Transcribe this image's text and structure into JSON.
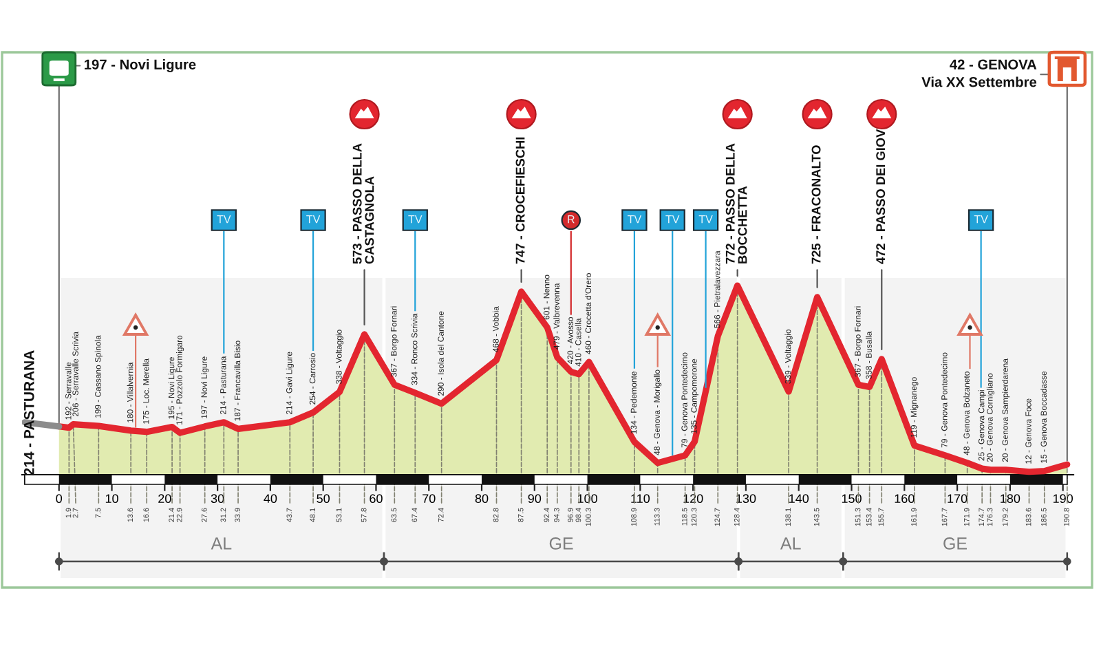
{
  "chart_data": {
    "type": "area",
    "x": [
      0,
      1.9,
      2.7,
      7.5,
      13.6,
      16.6,
      21.4,
      22.9,
      27.6,
      31.2,
      33.9,
      43.7,
      48.1,
      53.1,
      57.8,
      63.5,
      67.4,
      72.4,
      82.8,
      87.5,
      92.4,
      94.3,
      96.9,
      98.4,
      100.3,
      108.9,
      113.3,
      118.5,
      120.3,
      124.7,
      128.4,
      138.1,
      143.5,
      151.3,
      153.4,
      155.7,
      161.9,
      167.7,
      171.9,
      174.7,
      176.3,
      179.2,
      183.6,
      186.5,
      190.8
    ],
    "series": [
      {
        "color": "#e1ebb0",
        "values": [
          197,
          192,
          206,
          199,
          180,
          175,
          195,
          171,
          197,
          214,
          187,
          214,
          254,
          338,
          573,
          367,
          334,
          290,
          468,
          747,
          601,
          479,
          420,
          410,
          460,
          134,
          48,
          79,
          135,
          566,
          772,
          339,
          725,
          367,
          358,
          472,
          119,
          79,
          48,
          25,
          20,
          20,
          12,
          15,
          42
        ],
        "value_labels": [
          null,
          "192 - Serravalle",
          "206 - Serravalle Scrivia",
          "199 - Cassano Spinola",
          "180 - Villalvernia",
          "175 - Loc. Merella",
          "195 - Novi Ligure",
          "171 - Pozzolo Formigaro",
          "197 - Novi Ligure",
          "214 - Pasturana",
          "187 - Francavilla Bisio",
          "214 - Gavi Ligure",
          "254 - Carrosio",
          "338 - Voltaggio",
          null,
          "367 - Borgo Fornari",
          "334 - Ronco Scrivia",
          "290 - Isola del Cantone",
          "468 - Vobbia",
          null,
          "601 - Nenno",
          "479 - Valbrevenna",
          "420 - Avosso",
          "410 - Casella",
          "460 - Crocetta d'Orero",
          "134 - Pedemonte",
          "48 - Genova - Morigallo",
          "79 - Genova Pontedecimo",
          "135 - Campomorone",
          "566 - Pietralavezzara",
          null,
          "339 - Voltaggio",
          null,
          "367 - Borgo Fornari",
          "358 - Busalla",
          null,
          "119 - Mignanego",
          "79 - Genova Pontedecimo",
          "48 - Genova Bolzaneto",
          "25 - Genova Campi",
          "20 - Genova Cornigliano",
          "20 - Genova Sampierdarena",
          "12 - Genova Foce",
          "15 - Genova Boccadasse",
          null
        ]
      },
      {
        "type": "line",
        "color": "#e3262f",
        "values": [
          197,
          192,
          206,
          199,
          180,
          175,
          195,
          171,
          197,
          214,
          187,
          214,
          254,
          338,
          573,
          367,
          334,
          290,
          468,
          747,
          601,
          479,
          420,
          410,
          460,
          134,
          48,
          79,
          135,
          566,
          772,
          339,
          725,
          367,
          358,
          472,
          119,
          79,
          48,
          25,
          20,
          20,
          12,
          15,
          42
        ]
      },
      {
        "type": "line",
        "color": "#8c8c8c",
        "x": [
          -6.5,
          0
        ],
        "values": [
          214,
          197
        ]
      }
    ],
    "xlim": [
      -7,
      192
    ],
    "xticks": [
      0,
      10,
      20,
      30,
      40,
      50,
      60,
      70,
      80,
      90,
      100,
      110,
      120,
      130,
      140,
      150,
      160,
      170,
      180,
      190
    ],
    "tick_labels": "x",
    "annotations": [
      {
        "text": "197 - Novi Ligure",
        "x": 0,
        "y": 197
      },
      {
        "text": "42 - GENOVA\nVia XX Settembre",
        "x": 190.8,
        "y": 42
      },
      "214 - PASTURANA",
      {
        "text": "573 - PASSO DELLA\nCASTAGNOLA",
        "x": 57.8,
        "y": 573
      },
      {
        "text": "747 - CROCEFIESCHI",
        "x": 87.5,
        "y": 747
      },
      {
        "text": "772 - PASSO DELLA\nBOCCHETTA",
        "x": 128.4,
        "y": 772
      },
      {
        "text": "725 - FRACONALTO",
        "x": 143.5,
        "y": 725
      },
      {
        "text": "472 - PASSO DEI GIOVI",
        "x": 155.7,
        "y": 472
      },
      {
        "text": "1.9",
        "x": 1.9,
        "y": 192
      },
      {
        "text": "2.7",
        "x": 2.7,
        "y": 206
      },
      {
        "text": "7.5",
        "x": 7.5,
        "y": 199
      },
      {
        "text": "13.6",
        "x": 13.6,
        "y": 180
      },
      {
        "text": "16.6",
        "x": 16.6,
        "y": 175
      },
      {
        "text": "21.4",
        "x": 21.4,
        "y": 195
      },
      {
        "text": "22.9",
        "x": 22.9,
        "y": 171
      },
      {
        "text": "27.6",
        "x": 27.6,
        "y": 197
      },
      {
        "text": "31.2",
        "x": 31.2,
        "y": 214
      },
      {
        "text": "33.9",
        "x": 33.9,
        "y": 187
      },
      {
        "text": "43.7",
        "x": 43.7,
        "y": 214
      },
      {
        "text": "48.1",
        "x": 48.1,
        "y": 254
      },
      {
        "text": "53.1",
        "x": 53.1,
        "y": 338
      },
      {
        "text": "57.8",
        "x": 57.8,
        "y": 573
      },
      {
        "text": "63.5",
        "x": 63.5,
        "y": 367
      },
      {
        "text": "67.4",
        "x": 67.4,
        "y": 334
      },
      {
        "text": "72.4",
        "x": 72.4,
        "y": 290
      },
      {
        "text": "82.8",
        "x": 82.8,
        "y": 468
      },
      {
        "text": "87.5",
        "x": 87.5,
        "y": 747
      },
      {
        "text": "92.4",
        "x": 92.4,
        "y": 601
      },
      {
        "text": "94.3",
        "x": 94.3,
        "y": 479
      },
      {
        "text": "96.9",
        "x": 96.9,
        "y": 420
      },
      {
        "text": "98.4",
        "x": 98.4,
        "y": 410
      },
      {
        "text": "100.3",
        "x": 100.3,
        "y": 460
      },
      {
        "text": "108.9",
        "x": 108.9,
        "y": 134
      },
      {
        "text": "113.3",
        "x": 113.3,
        "y": 48
      },
      {
        "text": "118.5",
        "x": 118.5,
        "y": 79
      },
      {
        "text": "120.3",
        "x": 120.3,
        "y": 135
      },
      {
        "text": "124.7",
        "x": 124.7,
        "y": 566
      },
      {
        "text": "128.4",
        "x": 128.4,
        "y": 772
      },
      {
        "text": "138.1",
        "x": 138.1,
        "y": 339
      },
      {
        "text": "143.5",
        "x": 143.5,
        "y": 725
      },
      {
        "text": "151.3",
        "x": 151.3,
        "y": 367
      },
      {
        "text": "153.4",
        "x": 153.4,
        "y": 358
      },
      {
        "text": "155.7",
        "x": 155.7,
        "y": 472
      },
      {
        "text": "161.9",
        "x": 161.9,
        "y": 119
      },
      {
        "text": "167.7",
        "x": 167.7,
        "y": 79
      },
      {
        "text": "171.9",
        "x": 171.9,
        "y": 48
      },
      {
        "text": "174.7",
        "x": 174.7,
        "y": 25
      },
      {
        "text": "176.3",
        "x": 176.3,
        "y": 20
      },
      {
        "text": "179.2",
        "x": 179.2,
        "y": 20
      },
      {
        "text": "183.6",
        "x": 183.6,
        "y": 12
      },
      {
        "text": "186.5",
        "x": 186.5,
        "y": 15
      },
      {
        "text": "190.8",
        "x": 190.8,
        "y": 42
      }
    ],
    "ref_lines": [
      {
        "axis": "x",
        "value": 31.2,
        "label": "TV",
        "color": "#22a3d9"
      },
      {
        "axis": "x",
        "value": 48.1,
        "label": "TV",
        "color": "#22a3d9"
      },
      {
        "axis": "x",
        "value": 67.4,
        "label": "TV",
        "color": "#22a3d9"
      },
      {
        "axis": "x",
        "value": 108.9,
        "label": "TV",
        "color": "#22a3d9"
      },
      {
        "axis": "x",
        "value": 116.1,
        "label": "TV",
        "color": "#22a3d9"
      },
      {
        "axis": "x",
        "value": 122.4,
        "label": "TV",
        "color": "#22a3d9"
      },
      {
        "axis": "x",
        "value": 174.5,
        "label": "TV",
        "color": "#22a3d9"
      },
      {
        "axis": "x",
        "value": 96.9,
        "label": "R",
        "color": "#d32a2c"
      },
      {
        "axis": "x",
        "value": 14.5,
        "label": null,
        "color": "#e07866"
      },
      {
        "axis": "x",
        "value": 113.3,
        "label": null,
        "color": "#e07866"
      },
      {
        "axis": "x",
        "value": 172.4,
        "label": null,
        "color": "#e07866"
      }
    ],
    "bands": [
      {
        "axis": "x",
        "from": 0,
        "to": 61.5,
        "label": "AL",
        "color": "#f3f3f3"
      },
      {
        "axis": "x",
        "from": 61.5,
        "to": 128.6,
        "label": "GE",
        "color": "#f3f3f3"
      },
      {
        "axis": "x",
        "from": 128.6,
        "to": 148.4,
        "label": "AL",
        "color": "#f3f3f3"
      },
      {
        "axis": "x",
        "from": 148.4,
        "to": 190.8,
        "label": "GE",
        "color": "#f3f3f3"
      }
    ]
  }
}
